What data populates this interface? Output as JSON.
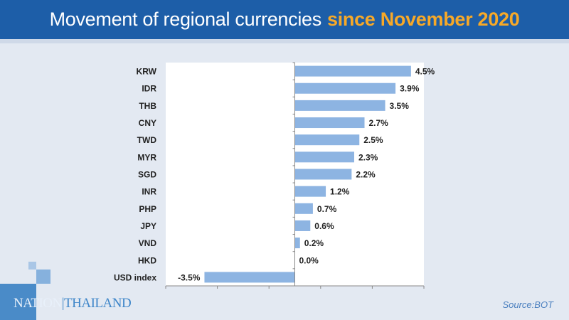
{
  "header": {
    "title_main": "Movement of regional currencies",
    "title_highlight": "since November 2020"
  },
  "logo": {
    "text_a": "NATION",
    "text_b": "|THAILAND"
  },
  "source": "Source:BOT",
  "colors": {
    "header": "#1d5ea8",
    "highlight": "#f7a928",
    "bar": "#8db4e2"
  },
  "chart_data": {
    "type": "bar",
    "orientation": "horizontal",
    "title": "Movement of regional currencies since November 2020",
    "categories": [
      "KRW",
      "IDR",
      "THB",
      "CNY",
      "TWD",
      "MYR",
      "SGD",
      "INR",
      "PHP",
      "JPY",
      "VND",
      "HKD",
      "USD index"
    ],
    "values": [
      4.5,
      3.9,
      3.5,
      2.7,
      2.5,
      2.3,
      2.2,
      1.2,
      0.7,
      0.6,
      0.2,
      0.0,
      -3.5
    ],
    "labels": [
      "4.5%",
      "3.9%",
      "3.5%",
      "2.7%",
      "2.5%",
      "2.3%",
      "2.2%",
      "1.2%",
      "0.7%",
      "0.6%",
      "0.2%",
      "0.0%",
      "-3.5%"
    ],
    "xlim": [
      -5,
      5
    ],
    "xticks": [
      -5,
      -3,
      -1,
      1,
      3,
      5
    ],
    "unit": "%",
    "grid": false
  }
}
